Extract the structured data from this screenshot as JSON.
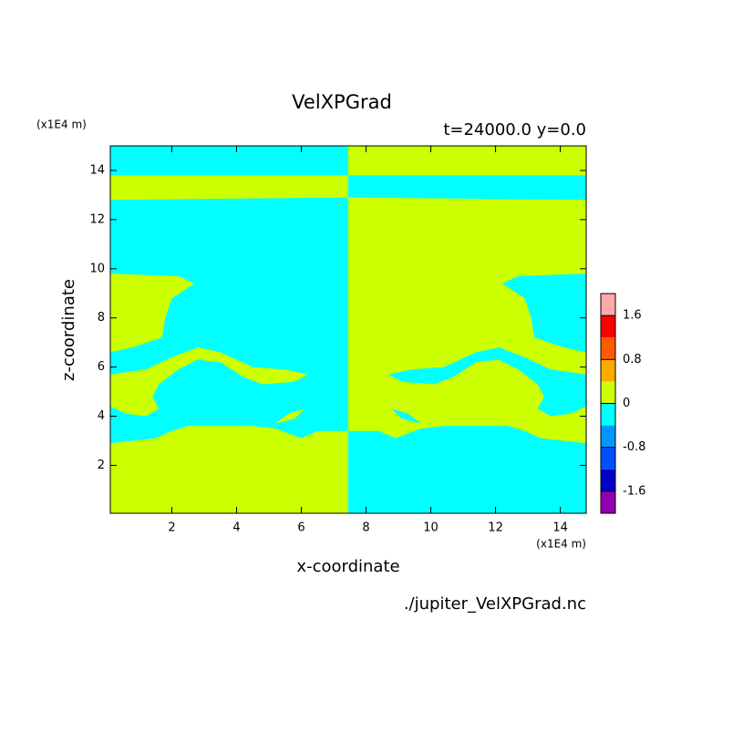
{
  "chart_data": {
    "type": "filled-contour",
    "title": "VelXPGrad",
    "subtitle": "t=24000.0 y=0.0",
    "x_label": "x-coordinate",
    "y_label": "z-coordinate",
    "x_units": "(x1E4 m)",
    "y_units": "(x1E4 m)",
    "source": "./jupiter_VelXPGrad.nc",
    "xlim": [
      0.1,
      14.8
    ],
    "ylim": [
      0.05,
      15
    ],
    "xticks": [
      2,
      4,
      6,
      8,
      10,
      12,
      14
    ],
    "yticks": [
      2,
      4,
      6,
      8,
      10,
      12,
      14
    ],
    "colorbar": {
      "levels": [
        -2,
        -1.6,
        -1.2,
        -0.8,
        -0.4,
        0,
        0.4,
        0.8,
        1.2,
        1.6,
        2
      ],
      "colors": [
        "#9400b0",
        "#0000c8",
        "#0050ff",
        "#0098ff",
        "#00ffff",
        "#ccff00",
        "#ffaa00",
        "#ff5a00",
        "#ff0000",
        "#ffaaaa"
      ],
      "ticks": [
        1.6,
        0.8,
        0,
        -0.8,
        -1.6
      ]
    },
    "regions": [
      {
        "value": -0.2,
        "points": [
          [
            0.1,
            0.05
          ],
          [
            7.45,
            0.05
          ],
          [
            7.45,
            15
          ],
          [
            0.1,
            15
          ]
        ]
      },
      {
        "value": 0.2,
        "points": [
          [
            7.45,
            0.05
          ],
          [
            14.8,
            0.05
          ],
          [
            14.8,
            15
          ],
          [
            7.45,
            15
          ]
        ]
      },
      {
        "value": 0.2,
        "points": [
          [
            0.1,
            0.05
          ],
          [
            7.45,
            0.05
          ],
          [
            7.45,
            3.4
          ],
          [
            6.5,
            3.4
          ],
          [
            6.0,
            3.1
          ],
          [
            5.2,
            3.5
          ],
          [
            4.5,
            3.6
          ],
          [
            2.5,
            3.6
          ],
          [
            2.0,
            3.4
          ],
          [
            1.5,
            3.1
          ],
          [
            0.1,
            2.9
          ]
        ]
      },
      {
        "value": 0.2,
        "points": [
          [
            0.1,
            12.8
          ],
          [
            7.45,
            12.9
          ],
          [
            7.45,
            13.8
          ],
          [
            0.1,
            13.8
          ]
        ]
      },
      {
        "value": 0.2,
        "points": [
          [
            0.1,
            6.6
          ],
          [
            0.8,
            6.8
          ],
          [
            1.7,
            7.2
          ],
          [
            1.8,
            8.0
          ],
          [
            2.0,
            8.8
          ],
          [
            2.7,
            9.4
          ],
          [
            2.2,
            9.7
          ],
          [
            0.1,
            9.8
          ]
        ]
      },
      {
        "value": 0.2,
        "points": [
          [
            0.1,
            5.7
          ],
          [
            1.2,
            5.9
          ],
          [
            2.0,
            6.4
          ],
          [
            2.8,
            6.8
          ],
          [
            3.5,
            6.6
          ],
          [
            4.5,
            6.0
          ],
          [
            5.5,
            5.9
          ],
          [
            6.2,
            5.7
          ],
          [
            5.8,
            5.4
          ],
          [
            4.8,
            5.3
          ],
          [
            4.2,
            5.6
          ],
          [
            3.5,
            6.2
          ],
          [
            2.8,
            6.3
          ],
          [
            2.2,
            5.9
          ],
          [
            1.6,
            5.3
          ],
          [
            1.4,
            4.8
          ],
          [
            1.6,
            4.3
          ],
          [
            1.2,
            4.0
          ],
          [
            0.6,
            4.1
          ],
          [
            0.1,
            4.4
          ]
        ]
      },
      {
        "value": 0.2,
        "points": [
          [
            5.2,
            3.7
          ],
          [
            5.6,
            4.1
          ],
          [
            6.1,
            4.3
          ],
          [
            5.8,
            3.9
          ]
        ]
      },
      {
        "value": -0.2,
        "points": [
          [
            14.8,
            0.05
          ],
          [
            7.45,
            0.05
          ],
          [
            7.45,
            3.4
          ],
          [
            8.4,
            3.4
          ],
          [
            8.9,
            3.1
          ],
          [
            9.7,
            3.5
          ],
          [
            10.4,
            3.6
          ],
          [
            12.4,
            3.6
          ],
          [
            12.9,
            3.4
          ],
          [
            13.4,
            3.1
          ],
          [
            14.8,
            2.9
          ]
        ]
      },
      {
        "value": -0.2,
        "points": [
          [
            14.8,
            12.8
          ],
          [
            7.45,
            12.9
          ],
          [
            7.45,
            13.8
          ],
          [
            14.8,
            13.8
          ]
        ]
      },
      {
        "value": -0.2,
        "points": [
          [
            14.8,
            6.6
          ],
          [
            14.1,
            6.8
          ],
          [
            13.2,
            7.2
          ],
          [
            13.1,
            8.0
          ],
          [
            12.9,
            8.8
          ],
          [
            12.2,
            9.4
          ],
          [
            12.7,
            9.7
          ],
          [
            14.8,
            9.8
          ]
        ]
      },
      {
        "value": -0.2,
        "points": [
          [
            14.8,
            5.7
          ],
          [
            13.7,
            5.9
          ],
          [
            12.9,
            6.4
          ],
          [
            12.1,
            6.8
          ],
          [
            11.4,
            6.6
          ],
          [
            10.4,
            6.0
          ],
          [
            9.4,
            5.9
          ],
          [
            8.7,
            5.7
          ],
          [
            9.1,
            5.4
          ],
          [
            10.1,
            5.3
          ],
          [
            10.7,
            5.6
          ],
          [
            11.4,
            6.2
          ],
          [
            12.1,
            6.3
          ],
          [
            12.7,
            5.9
          ],
          [
            13.3,
            5.3
          ],
          [
            13.5,
            4.8
          ],
          [
            13.3,
            4.3
          ],
          [
            13.7,
            4.0
          ],
          [
            14.3,
            4.1
          ],
          [
            14.8,
            4.4
          ]
        ]
      },
      {
        "value": -0.2,
        "points": [
          [
            9.7,
            3.7
          ],
          [
            9.3,
            4.1
          ],
          [
            8.8,
            4.3
          ],
          [
            9.1,
            3.9
          ]
        ]
      }
    ]
  }
}
